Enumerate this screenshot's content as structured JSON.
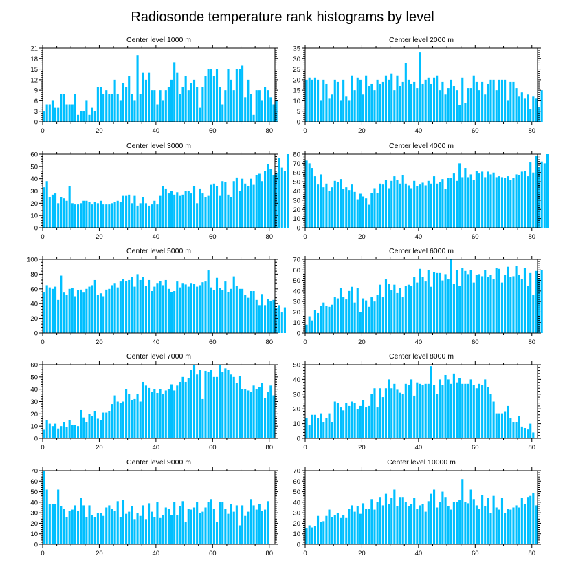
{
  "figure": {
    "title": "Radiosonde temperature rank histograms by level",
    "bar_color": "#00BFFF",
    "axis_color": "#000000"
  },
  "chart_data": [
    {
      "type": "bar",
      "title": "Center level 1000 m",
      "xlabel": "",
      "ylabel": "",
      "xlim": [
        0,
        82
      ],
      "ylim": [
        0,
        21
      ],
      "xticks": [
        0,
        20,
        40,
        60,
        80
      ],
      "yticks": [
        0,
        3,
        6,
        9,
        12,
        15,
        18,
        21
      ],
      "values": [
        3,
        5,
        5,
        6,
        4,
        4,
        8,
        8,
        5,
        5,
        5,
        8,
        2,
        3,
        3,
        6,
        2,
        4,
        3,
        10,
        10,
        8,
        9,
        8,
        8,
        12,
        8,
        6,
        11,
        10,
        13,
        8,
        6,
        19,
        8,
        14,
        12,
        14,
        9,
        9,
        5,
        9,
        6,
        9,
        10,
        12,
        17,
        14,
        8,
        10,
        13,
        9,
        11,
        12,
        10,
        4,
        10,
        13,
        15,
        15,
        13,
        15,
        10,
        5,
        9,
        15,
        12,
        9,
        15,
        15,
        16,
        7,
        12,
        8,
        2,
        9,
        9,
        6,
        10,
        9,
        7,
        5,
        6
      ]
    },
    {
      "type": "bar",
      "title": "Center level 2000 m",
      "xlabel": "",
      "ylabel": "",
      "xlim": [
        0,
        82
      ],
      "ylim": [
        0,
        35
      ],
      "xticks": [
        0,
        20,
        40,
        60,
        80
      ],
      "yticks": [
        0,
        5,
        10,
        15,
        20,
        25,
        30,
        35
      ],
      "values": [
        20,
        21,
        20,
        21,
        20,
        10,
        20,
        18,
        11,
        13,
        20,
        19,
        10,
        20,
        12,
        10,
        22,
        15,
        21,
        20,
        13,
        22,
        17,
        18,
        15,
        20,
        18,
        19,
        22,
        20,
        23,
        15,
        22,
        17,
        19,
        28,
        20,
        18,
        19,
        16,
        33,
        18,
        20,
        21,
        18,
        21,
        22,
        15,
        19,
        13,
        16,
        20,
        17,
        15,
        8,
        21,
        9,
        16,
        16,
        22,
        19,
        15,
        19,
        13,
        18,
        20,
        20,
        15,
        20,
        20,
        20,
        10,
        19,
        19,
        16,
        12,
        14,
        11,
        13,
        6,
        12,
        11,
        7,
        15
      ]
    },
    {
      "type": "bar",
      "title": "Center level 3000 m",
      "xlabel": "",
      "ylabel": "",
      "xlim": [
        0,
        82
      ],
      "ylim": [
        0,
        60
      ],
      "xticks": [
        0,
        20,
        40,
        60,
        80
      ],
      "yticks": [
        0,
        10,
        20,
        30,
        40,
        50,
        60
      ],
      "values": [
        33,
        38,
        25,
        27,
        28,
        20,
        25,
        24,
        22,
        34,
        20,
        19,
        19,
        20,
        22,
        22,
        21,
        19,
        21,
        20,
        22,
        19,
        19,
        19,
        20,
        21,
        22,
        21,
        26,
        26,
        27,
        20,
        26,
        18,
        20,
        25,
        20,
        18,
        19,
        22,
        19,
        26,
        34,
        32,
        28,
        30,
        27,
        29,
        26,
        27,
        30,
        30,
        28,
        34,
        20,
        32,
        28,
        25,
        26,
        35,
        36,
        34,
        26,
        38,
        37,
        27,
        25,
        38,
        41,
        30,
        40,
        36,
        34,
        40,
        35,
        43,
        44,
        38,
        46,
        52,
        48,
        43,
        45,
        57,
        49,
        46,
        60
      ]
    },
    {
      "type": "bar",
      "title": "Center level 4000 m",
      "xlabel": "",
      "ylabel": "",
      "xlim": [
        0,
        82
      ],
      "ylim": [
        0,
        80
      ],
      "xticks": [
        0,
        20,
        40,
        60,
        80
      ],
      "yticks": [
        0,
        10,
        20,
        30,
        40,
        50,
        60,
        70,
        80
      ],
      "values": [
        73,
        70,
        65,
        56,
        47,
        58,
        44,
        48,
        40,
        44,
        51,
        50,
        53,
        42,
        44,
        41,
        47,
        39,
        31,
        37,
        34,
        32,
        25,
        38,
        43,
        38,
        48,
        47,
        52,
        43,
        51,
        56,
        52,
        48,
        57,
        48,
        46,
        43,
        51,
        45,
        47,
        49,
        46,
        51,
        48,
        56,
        48,
        50,
        53,
        42,
        54,
        54,
        59,
        51,
        70,
        55,
        65,
        55,
        58,
        52,
        62,
        59,
        61,
        55,
        61,
        58,
        60,
        55,
        56,
        55,
        54,
        56,
        52,
        54,
        58,
        57,
        61,
        62,
        56,
        71,
        60,
        78,
        66,
        72,
        70,
        80
      ]
    },
    {
      "type": "bar",
      "title": "Center level 5000 m",
      "xlabel": "",
      "ylabel": "",
      "xlim": [
        0,
        82
      ],
      "ylim": [
        0,
        100
      ],
      "xticks": [
        0,
        20,
        40,
        60,
        80
      ],
      "yticks": [
        0,
        20,
        40,
        60,
        80,
        100
      ],
      "values": [
        56,
        65,
        62,
        60,
        63,
        45,
        78,
        55,
        52,
        60,
        61,
        50,
        58,
        59,
        55,
        60,
        63,
        65,
        72,
        52,
        54,
        50,
        59,
        60,
        65,
        68,
        62,
        70,
        73,
        71,
        72,
        76,
        63,
        80,
        72,
        76,
        64,
        72,
        57,
        63,
        68,
        71,
        65,
        72,
        60,
        56,
        57,
        70,
        62,
        68,
        66,
        63,
        68,
        67,
        63,
        65,
        69,
        70,
        85,
        62,
        58,
        75,
        61,
        58,
        70,
        56,
        60,
        77,
        64,
        60,
        60,
        52,
        48,
        57,
        57,
        45,
        38,
        53,
        38,
        46,
        43,
        45,
        34,
        38,
        28,
        35
      ]
    },
    {
      "type": "bar",
      "title": "Center level 6000 m",
      "xlabel": "",
      "ylabel": "",
      "xlim": [
        0,
        82
      ],
      "ylim": [
        0,
        70
      ],
      "xticks": [
        0,
        20,
        40,
        60,
        80
      ],
      "yticks": [
        0,
        10,
        20,
        30,
        40,
        50,
        60,
        70
      ],
      "values": [
        8,
        16,
        12,
        22,
        19,
        26,
        29,
        26,
        25,
        27,
        34,
        33,
        43,
        34,
        32,
        40,
        44,
        29,
        43,
        20,
        33,
        31,
        25,
        34,
        30,
        36,
        46,
        34,
        51,
        47,
        41,
        46,
        38,
        43,
        34,
        45,
        46,
        45,
        53,
        48,
        61,
        53,
        49,
        60,
        44,
        58,
        57,
        57,
        50,
        56,
        51,
        70,
        47,
        60,
        45,
        62,
        59,
        56,
        60,
        48,
        55,
        56,
        54,
        60,
        53,
        55,
        51,
        62,
        61,
        48,
        55,
        63,
        53,
        54,
        64,
        55,
        51,
        62,
        45,
        57,
        36,
        59,
        51,
        60
      ]
    },
    {
      "type": "bar",
      "title": "Center level 7000 m",
      "xlabel": "",
      "ylabel": "",
      "xlim": [
        0,
        82
      ],
      "ylim": [
        0,
        60
      ],
      "xticks": [
        0,
        20,
        40,
        60,
        80
      ],
      "yticks": [
        0,
        10,
        20,
        30,
        40,
        50,
        60
      ],
      "values": [
        7,
        15,
        12,
        10,
        12,
        8,
        10,
        13,
        9,
        15,
        11,
        11,
        10,
        23,
        17,
        13,
        20,
        18,
        22,
        16,
        15,
        21,
        21,
        22,
        28,
        35,
        30,
        29,
        30,
        40,
        36,
        31,
        32,
        36,
        30,
        46,
        43,
        41,
        38,
        40,
        37,
        40,
        36,
        39,
        40,
        44,
        39,
        43,
        46,
        50,
        46,
        49,
        56,
        60,
        52,
        56,
        32,
        55,
        54,
        56,
        50,
        50,
        60,
        54,
        57,
        56,
        52,
        50,
        45,
        51,
        40,
        40,
        39,
        38,
        43,
        40,
        42,
        45,
        33,
        38,
        43,
        35
      ]
    },
    {
      "type": "bar",
      "title": "Center level 8000 m",
      "xlabel": "",
      "ylabel": "",
      "xlim": [
        0,
        82
      ],
      "ylim": [
        0,
        50
      ],
      "xticks": [
        0,
        20,
        40,
        60,
        80
      ],
      "yticks": [
        0,
        10,
        20,
        30,
        40,
        50
      ],
      "values": [
        14,
        9,
        16,
        16,
        14,
        17,
        11,
        14,
        17,
        11,
        25,
        24,
        21,
        19,
        24,
        22,
        25,
        24,
        20,
        22,
        26,
        21,
        22,
        30,
        34,
        21,
        34,
        28,
        34,
        40,
        34,
        37,
        33,
        31,
        30,
        37,
        36,
        40,
        29,
        38,
        37,
        36,
        37,
        37,
        49,
        36,
        30,
        40,
        36,
        43,
        40,
        37,
        44,
        38,
        41,
        37,
        37,
        37,
        40,
        36,
        34,
        37,
        36,
        40,
        35,
        30,
        25,
        17,
        17,
        17,
        18,
        22,
        14,
        11,
        11,
        15,
        8,
        7,
        6,
        10,
        4
      ]
    },
    {
      "type": "bar",
      "title": "Center level 9000 m",
      "xlabel": "",
      "ylabel": "",
      "xlim": [
        0,
        82
      ],
      "ylim": [
        0,
        70
      ],
      "xticks": [
        0,
        20,
        40,
        60,
        80
      ],
      "yticks": [
        0,
        10,
        20,
        30,
        40,
        50,
        60,
        70
      ],
      "values": [
        70,
        52,
        38,
        38,
        38,
        52,
        36,
        34,
        26,
        32,
        33,
        37,
        32,
        44,
        37,
        26,
        37,
        28,
        26,
        30,
        30,
        27,
        35,
        37,
        34,
        32,
        41,
        26,
        42,
        29,
        31,
        36,
        24,
        30,
        27,
        37,
        24,
        39,
        31,
        26,
        40,
        25,
        28,
        35,
        34,
        28,
        40,
        28,
        36,
        41,
        21,
        34,
        33,
        35,
        40,
        30,
        31,
        35,
        40,
        43,
        34,
        21,
        40,
        40,
        34,
        29,
        38,
        31,
        37,
        18,
        37,
        27,
        31,
        43,
        37,
        33,
        38,
        32,
        33,
        41
      ]
    },
    {
      "type": "bar",
      "title": "Center level 10000 m",
      "xlabel": "",
      "ylabel": "",
      "xlim": [
        0,
        82
      ],
      "ylim": [
        0,
        70
      ],
      "xticks": [
        0,
        20,
        40,
        60,
        80
      ],
      "yticks": [
        0,
        10,
        20,
        30,
        40,
        50,
        60,
        70
      ],
      "values": [
        15,
        18,
        16,
        17,
        27,
        21,
        22,
        27,
        33,
        26,
        28,
        30,
        25,
        28,
        25,
        34,
        37,
        31,
        36,
        29,
        39,
        34,
        34,
        43,
        33,
        40,
        45,
        37,
        48,
        38,
        44,
        52,
        36,
        45,
        45,
        40,
        36,
        38,
        44,
        34,
        37,
        38,
        31,
        41,
        48,
        52,
        35,
        40,
        50,
        45,
        36,
        33,
        40,
        40,
        42,
        62,
        40,
        39,
        52,
        43,
        37,
        34,
        47,
        36,
        44,
        30,
        46,
        35,
        33,
        44,
        30,
        34,
        33,
        35,
        37,
        35,
        44,
        38,
        45,
        46,
        49,
        37
      ]
    }
  ]
}
